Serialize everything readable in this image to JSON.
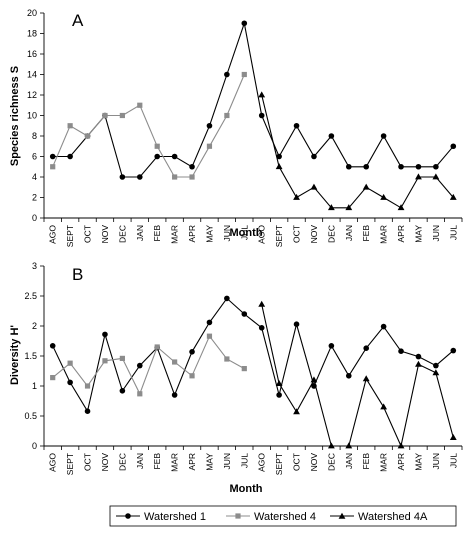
{
  "legend": [
    "Watershed 1",
    "Watershed 4",
    "Watershed 4A"
  ],
  "colors": {
    "w1": "#000000",
    "w4": "#8c8c8c",
    "w4a": "#000000"
  },
  "chart_data": [
    {
      "type": "line",
      "panel_label": "A",
      "xlabel": "Month",
      "ylabel": "Species richness  S",
      "ylim": [
        0,
        20
      ],
      "yticks": [
        "0",
        "2",
        "4",
        "6",
        "8",
        "10",
        "12",
        "14",
        "16",
        "18",
        "20"
      ],
      "categories": [
        "AGO",
        "SEPT",
        "OCT",
        "NOV",
        "DEC",
        "JAN",
        "FEB",
        "MAR",
        "APR",
        "MAY",
        "JUN",
        "JUL",
        "AGO",
        "SEPT",
        "OCT",
        "NOV",
        "DEC",
        "JAN",
        "FEB",
        "MAR",
        "APR",
        "MAY",
        "JUN",
        "JUL"
      ],
      "grid": false,
      "series": [
        {
          "name": "Watershed 1",
          "marker": "circle",
          "values": [
            6,
            6,
            8,
            10,
            4,
            4,
            6,
            6,
            5,
            9,
            14,
            19,
            10,
            6,
            9,
            6,
            8,
            5,
            5,
            8,
            5,
            5,
            5,
            7
          ]
        },
        {
          "name": "Watershed 4",
          "marker": "square",
          "values": [
            5,
            9,
            8,
            10,
            10,
            11,
            7,
            4,
            4,
            7,
            10,
            14,
            null,
            null,
            null,
            null,
            null,
            null,
            null,
            null,
            null,
            null,
            null,
            null
          ]
        },
        {
          "name": "Watershed 4A",
          "marker": "triangle",
          "values": [
            null,
            null,
            null,
            null,
            null,
            null,
            null,
            null,
            null,
            null,
            null,
            null,
            12,
            5,
            2,
            3,
            1,
            1,
            3,
            2,
            1,
            4,
            4,
            2
          ]
        }
      ]
    },
    {
      "type": "line",
      "panel_label": "B",
      "xlabel": "Month",
      "ylabel": "Diversity H'",
      "ylim": [
        0,
        3
      ],
      "yticks": [
        "0",
        "0.5",
        "1",
        "1.5",
        "2",
        "2.5",
        "3"
      ],
      "categories": [
        "AGO",
        "SEPT",
        "OCT",
        "NOV",
        "DEC",
        "JAN",
        "FEB",
        "MAR",
        "APR",
        "MAY",
        "JUN",
        "JUL",
        "AGO",
        "SEPT",
        "OCT",
        "NOV",
        "DEC",
        "JAN",
        "FEB",
        "MAR",
        "APR",
        "MAY",
        "JUN",
        "JUL"
      ],
      "grid": false,
      "series": [
        {
          "name": "Watershed 1",
          "marker": "circle",
          "values": [
            1.67,
            1.06,
            0.58,
            1.86,
            0.92,
            1.34,
            1.64,
            0.85,
            1.57,
            2.06,
            2.46,
            2.2,
            1.97,
            0.85,
            2.03,
            1.0,
            1.67,
            1.17,
            1.63,
            1.99,
            1.58,
            1.49,
            1.34,
            1.59
          ]
        },
        {
          "name": "Watershed 4",
          "marker": "square",
          "values": [
            1.14,
            1.38,
            1.0,
            1.42,
            1.46,
            0.87,
            1.65,
            1.4,
            1.17,
            1.83,
            1.45,
            1.29,
            null,
            null,
            null,
            null,
            null,
            null,
            null,
            null,
            null,
            null,
            null,
            null
          ]
        },
        {
          "name": "Watershed 4A",
          "marker": "triangle",
          "values": [
            null,
            null,
            null,
            null,
            null,
            null,
            null,
            null,
            null,
            null,
            null,
            null,
            2.36,
            1.04,
            0.57,
            1.1,
            0.0,
            0.0,
            1.12,
            0.65,
            0.0,
            1.36,
            1.22,
            0.14
          ]
        }
      ]
    }
  ]
}
